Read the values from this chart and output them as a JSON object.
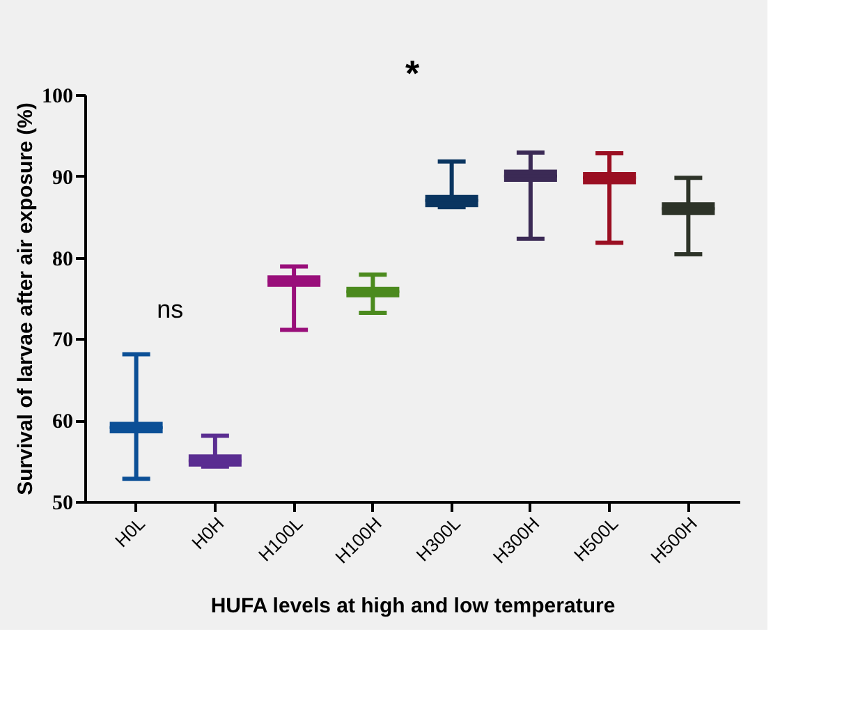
{
  "chart_data": {
    "type": "box",
    "xlabel": "HUFA levels at high and low temperature",
    "ylabel": "Survival of larvae after air exposure (%)",
    "categories": [
      "H0L",
      "H0H",
      "H100L",
      "H100H",
      "H300L",
      "H300H",
      "H500L",
      "H500H"
    ],
    "colors": [
      "#0b4f96",
      "#5a2d91",
      "#990f7a",
      "#4b8a1e",
      "#0a3560",
      "#3b2a55",
      "#9a0f22",
      "#2d3328"
    ],
    "boxes": [
      {
        "low": 52.8,
        "q1": 58.4,
        "median": 59.1,
        "q3": 59.8,
        "high": 68.1
      },
      {
        "low": 54.3,
        "q1": 54.3,
        "median": 55.0,
        "q3": 55.8,
        "high": 58.1
      },
      {
        "low": 71.1,
        "q1": 76.4,
        "median": 77.1,
        "q3": 77.8,
        "high": 78.9
      },
      {
        "low": 73.2,
        "q1": 75.1,
        "median": 75.8,
        "q3": 76.4,
        "high": 77.9
      },
      {
        "low": 86.2,
        "q1": 86.2,
        "median": 87.0,
        "q3": 87.7,
        "high": 91.8
      },
      {
        "low": 82.3,
        "q1": 89.3,
        "median": 90.0,
        "q3": 90.8,
        "high": 92.9
      },
      {
        "low": 81.8,
        "q1": 89.0,
        "median": 89.8,
        "q3": 90.5,
        "high": 92.8
      },
      {
        "low": 80.4,
        "q1": 85.2,
        "median": 86.0,
        "q3": 86.8,
        "high": 89.8
      }
    ],
    "ylim": [
      50,
      100
    ],
    "yticks": [
      50,
      60,
      70,
      80,
      90,
      100
    ],
    "grid": false,
    "annotations": [
      "ns",
      "*"
    ]
  }
}
